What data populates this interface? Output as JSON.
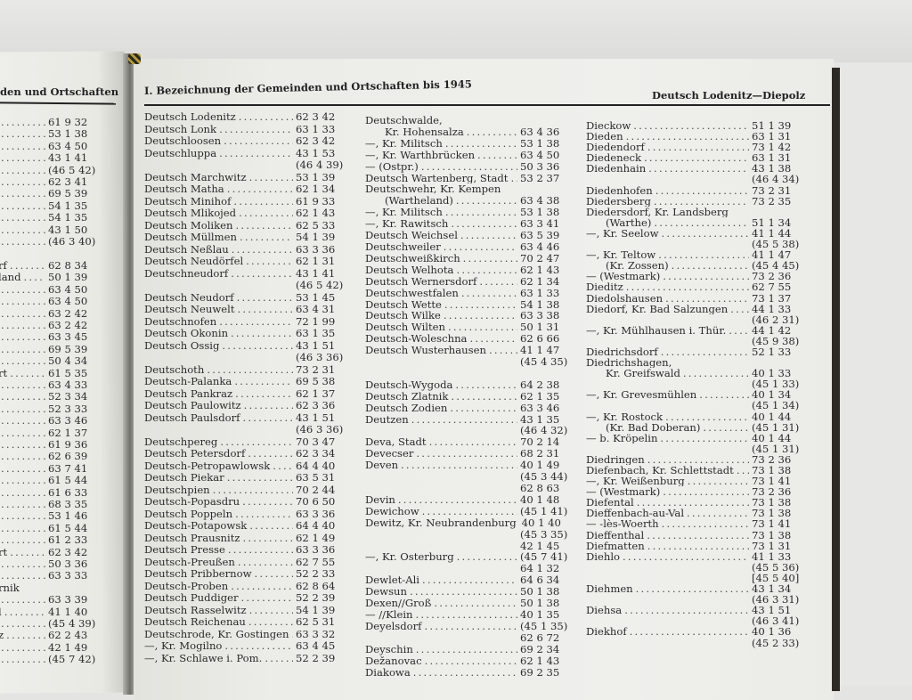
{
  "left_page": {
    "header": "den und Ortschaften",
    "lines": [
      {
        "name": "",
        "ref": "61 9 32"
      },
      {
        "name": "",
        "ref": "53 1 38"
      },
      {
        "name": "",
        "ref": "63 4 50"
      },
      {
        "name": "",
        "ref": "43 1 41"
      },
      {
        "name": "",
        "ref": "(46 5 42)"
      },
      {
        "name": "",
        "ref": "62 3 41"
      },
      {
        "name": "",
        "ref": "69 5 39"
      },
      {
        "name": "",
        "ref": "54 1 35"
      },
      {
        "name": "",
        "ref": "54 1 35"
      },
      {
        "name": "",
        "ref": "43 1 50"
      },
      {
        "name": "",
        "ref": "(46 3 40)"
      },
      {
        "name": "",
        "ref": ""
      },
      {
        "name": "rf",
        "ref": "62 8 34"
      },
      {
        "name": "land",
        "ref": "50 1 39"
      },
      {
        "name": "",
        "ref": "63 4 50"
      },
      {
        "name": "",
        "ref": "63 4 50"
      },
      {
        "name": "",
        "ref": "63 2 42"
      },
      {
        "name": "",
        "ref": "63 2 42"
      },
      {
        "name": "",
        "ref": "63 3 45"
      },
      {
        "name": "",
        "ref": "69 5 39"
      },
      {
        "name": "",
        "ref": "50 4 34"
      },
      {
        "name": "rt",
        "ref": "61 5 35"
      },
      {
        "name": "",
        "ref": "63 4 33"
      },
      {
        "name": "",
        "ref": "52 3 34"
      },
      {
        "name": "",
        "ref": "52 3 33"
      },
      {
        "name": "",
        "ref": "63 3 46"
      },
      {
        "name": "",
        "ref": "62 1 37"
      },
      {
        "name": "",
        "ref": "61 9 36"
      },
      {
        "name": "",
        "ref": "62 6 39"
      },
      {
        "name": "",
        "ref": "63 7 41"
      },
      {
        "name": "",
        "ref": "61 5 44"
      },
      {
        "name": "",
        "ref": "61 6 33"
      },
      {
        "name": "",
        "ref": "68 3 35"
      },
      {
        "name": "",
        "ref": "53 1 46"
      },
      {
        "name": "",
        "ref": "61 5 44"
      },
      {
        "name": "",
        "ref": "61 2 33"
      },
      {
        "name": "rt",
        "ref": "62 3 42"
      },
      {
        "name": "",
        "ref": "50 3 36"
      },
      {
        "name": "",
        "ref": "63 3 33"
      },
      {
        "name": "rnik",
        "ref": ""
      },
      {
        "name": "",
        "ref": "63 3 39"
      },
      {
        "name": "l",
        "ref": "41 1 40"
      },
      {
        "name": "",
        "ref": "(45 4 39)"
      },
      {
        "name": "z",
        "ref": "62 2 43"
      },
      {
        "name": "",
        "ref": "42 1 49"
      },
      {
        "name": "",
        "ref": "(45 7 42)"
      }
    ]
  },
  "right_page": {
    "header_left": "I. Bezeichnung der Gemeinden und Ortschaften bis 1945",
    "header_right": "Deutsch Lodenitz—Diepolz",
    "columns": [
      [
        {
          "name": "Deutsch Lodenitz",
          "ref": "62 3 42"
        },
        {
          "name": "Deutsch Lonk",
          "ref": "63 1 33"
        },
        {
          "name": "Deutschloosen",
          "ref": "62 3 42"
        },
        {
          "name": "Deutschluppa",
          "ref": "43 1 53"
        },
        {
          "name": "",
          "ref": "(46 4 39)"
        },
        {
          "name": "Deutsch Marchwitz",
          "ref": "53 1 39"
        },
        {
          "name": "Deutsch Matha",
          "ref": "62 1 34"
        },
        {
          "name": "Deutsch Minihof",
          "ref": "61 9 33"
        },
        {
          "name": "Deutsch Mlikojed",
          "ref": "62 1 43"
        },
        {
          "name": "Deutsch Moliken",
          "ref": "62 5 33"
        },
        {
          "name": "Deutsch Müllmen",
          "ref": "54 1 39"
        },
        {
          "name": "Deutsch Neßlau",
          "ref": "63 3 36"
        },
        {
          "name": "Deutsch Neudörfel",
          "ref": "62 1 31"
        },
        {
          "name": "Deutschneudorf",
          "ref": "43 1 41"
        },
        {
          "name": "",
          "ref": "(46 5 42)"
        },
        {
          "name": "Deutsch Neudorf",
          "ref": "53 1 45"
        },
        {
          "name": "Deutsch Neuwelt",
          "ref": "63 4 31"
        },
        {
          "name": "Deutschnofen",
          "ref": "72 1 99"
        },
        {
          "name": "Deutsch Okonin",
          "ref": "63 1 35"
        },
        {
          "name": "Deutsch Ossig",
          "ref": "43 1 51"
        },
        {
          "name": "",
          "ref": "(46 3 36)"
        },
        {
          "name": "Deutschoth",
          "ref": "73 2 31"
        },
        {
          "name": "Deutsch-Palanka",
          "ref": "69 5 38"
        },
        {
          "name": "Deutsch Pankraz",
          "ref": "62 1 37"
        },
        {
          "name": "Deutsch Paulowitz",
          "ref": "62 3 36"
        },
        {
          "name": "Deutsch Paulsdorf",
          "ref": "43 1 51"
        },
        {
          "name": "",
          "ref": "(46 3 36)"
        },
        {
          "name": "Deutschpereg",
          "ref": "70 3 47"
        },
        {
          "name": "Deutsch Petersdorf",
          "ref": "62 3 34"
        },
        {
          "name": "Deutsch-Petropawlowsk",
          "ref": "64 4 40"
        },
        {
          "name": "Deutsch Piekar",
          "ref": "63 5 31"
        },
        {
          "name": "Deutschpien",
          "ref": "70 2 44"
        },
        {
          "name": "Deutsch-Popasdru",
          "ref": "70 6 50"
        },
        {
          "name": "Deutsch Poppeln",
          "ref": "63 3 36"
        },
        {
          "name": "Deutsch-Potapowsk",
          "ref": "64 4 40"
        },
        {
          "name": "Deutsch Prausnitz",
          "ref": "62 1 49"
        },
        {
          "name": "Deutsch Presse",
          "ref": "63 3 36"
        },
        {
          "name": "Deutsch-Preußen",
          "ref": "62 7 55"
        },
        {
          "name": "Deutsch Pribbernow",
          "ref": "52 2 33"
        },
        {
          "name": "Deutsch-Proben",
          "ref": "62 8 64"
        },
        {
          "name": "Deutsch Puddiger",
          "ref": "52 2 39"
        },
        {
          "name": "Deutsch Rasselwitz",
          "ref": "54 1 39"
        },
        {
          "name": "Deutsch Reichenau",
          "ref": "62 5 31"
        },
        {
          "name": "Deutschrode, Kr. Gostingen",
          "ref": "63 3 32"
        },
        {
          "name": "—, Kr. Mogilno",
          "ref": "63 4 45"
        },
        {
          "name": "—, Kr. Schlawe i. Pom.",
          "ref": "52 2 39"
        }
      ],
      [
        {
          "name": "Deutschwalde,",
          "ref": ""
        },
        {
          "name": "Kr. Hohensalza",
          "ref": "63 4 36",
          "indent": true
        },
        {
          "name": "—, Kr. Militsch",
          "ref": "53 1 38"
        },
        {
          "name": "—, Kr. Warthbrücken",
          "ref": "63 4 50"
        },
        {
          "name": "— (Ostpr.)",
          "ref": "50 3 36"
        },
        {
          "name": "Deutsch Wartenberg, Stadt",
          "ref": "53 2 37"
        },
        {
          "name": "Deutschwehr, Kr. Kempen",
          "ref": ""
        },
        {
          "name": "(Wartheland)",
          "ref": "63 4 38",
          "indent": true
        },
        {
          "name": "—, Kr. Militsch",
          "ref": "53 1 38"
        },
        {
          "name": "—, Kr. Rawitsch",
          "ref": "63 3 41"
        },
        {
          "name": "Deutsch Weichsel",
          "ref": "63 5 39"
        },
        {
          "name": "Deutschweiler",
          "ref": "63 4 46"
        },
        {
          "name": "Deutschweißkirch",
          "ref": "70 2 47"
        },
        {
          "name": "Deutsch Welhota",
          "ref": "62 1 43"
        },
        {
          "name": "Deutsch Wernersdorf",
          "ref": "62 1 34"
        },
        {
          "name": "Deutschwestfalen",
          "ref": "63 1 33"
        },
        {
          "name": "Deutsch Wette",
          "ref": "54 1 38"
        },
        {
          "name": "Deutsch Wilke",
          "ref": "63 3 38"
        },
        {
          "name": "Deutsch Wilten",
          "ref": "50 1 31"
        },
        {
          "name": "Deutsch-Woleschna",
          "ref": "62 6 66"
        },
        {
          "name": "Deutsch Wusterhausen",
          "ref": "41 1 47"
        },
        {
          "name": "",
          "ref": "(45 4 35)"
        },
        {
          "name": "",
          "ref": ""
        },
        {
          "name": "Deutsch-Wygoda",
          "ref": "64 2 38"
        },
        {
          "name": "Deutsch Zlatnik",
          "ref": "62 1 35"
        },
        {
          "name": "Deutsch Zodien",
          "ref": "63 3 46"
        },
        {
          "name": "Deutzen",
          "ref": "43 1 35"
        },
        {
          "name": "",
          "ref": "(46 4 32)"
        },
        {
          "name": "Deva, Stadt",
          "ref": "70 2 14"
        },
        {
          "name": "Devecser",
          "ref": "68 2 31"
        },
        {
          "name": "Deven",
          "ref": "40 1 49"
        },
        {
          "name": "",
          "ref": "(45 3 44)"
        },
        {
          "name": "",
          "ref": "62 8 63"
        },
        {
          "name": "Devin",
          "ref": "40 1 48"
        },
        {
          "name": "Dewichow",
          "ref": "(45 1 41)"
        },
        {
          "name": "Dewitz, Kr. Neubrandenburg",
          "ref": "40 1 40"
        },
        {
          "name": "",
          "ref": "(45 3 35)"
        },
        {
          "name": "",
          "ref": "42 1 45"
        },
        {
          "name": "—, Kr. Osterburg",
          "ref": "(45 7 41)"
        },
        {
          "name": "",
          "ref": "64 1 32"
        },
        {
          "name": "Dewlet-Ali",
          "ref": "64 6 34"
        },
        {
          "name": "Dewsun",
          "ref": "50 1 38"
        },
        {
          "name": "Dexen//Groß",
          "ref": "50 1 38"
        },
        {
          "name": "— //Klein",
          "ref": "40 1 35"
        },
        {
          "name": "Deyelsdorf",
          "ref": "(45 1 35)"
        },
        {
          "name": "",
          "ref": "62 6 72"
        },
        {
          "name": "Deyschin",
          "ref": "69 2 34"
        },
        {
          "name": "Dežanovac",
          "ref": "62 1 43"
        },
        {
          "name": "Diakowa",
          "ref": "69 2 35"
        }
      ],
      [
        {
          "name": "Dieckow",
          "ref": "51 1 39"
        },
        {
          "name": "Dieden",
          "ref": "63 1 31"
        },
        {
          "name": "Diedendorf",
          "ref": "73 1 42"
        },
        {
          "name": "Diedeneck",
          "ref": "63 1 31"
        },
        {
          "name": "Diedenhain",
          "ref": "43 1 38"
        },
        {
          "name": "",
          "ref": "(46 4 34)"
        },
        {
          "name": "Diedenhofen",
          "ref": "73 2 31"
        },
        {
          "name": "Diedersberg",
          "ref": "73 2 35"
        },
        {
          "name": "Diedersdorf, Kr. Landsberg",
          "ref": ""
        },
        {
          "name": "(Warthe)",
          "ref": "51 1 34",
          "indent": true
        },
        {
          "name": "—, Kr. Seelow",
          "ref": "41 1 44"
        },
        {
          "name": "",
          "ref": "(45 5 38)"
        },
        {
          "name": "—, Kr. Teltow",
          "ref": "41 1 47"
        },
        {
          "name": "(Kr. Zossen)",
          "ref": "(45 4 45)",
          "indent": true
        },
        {
          "name": "— (Westmark)",
          "ref": "73 2 36"
        },
        {
          "name": "Dieditz",
          "ref": "62 7 55"
        },
        {
          "name": "Diedolshausen",
          "ref": "73 1 37"
        },
        {
          "name": "Diedorf, Kr. Bad Salzungen",
          "ref": "44 1 33"
        },
        {
          "name": "",
          "ref": "(46 2 31)"
        },
        {
          "name": "—, Kr. Mühlhausen i. Thür.",
          "ref": "44 1 42"
        },
        {
          "name": "",
          "ref": "(45 9 38)"
        },
        {
          "name": "Diedrichsdorf",
          "ref": "52 1 33"
        },
        {
          "name": "Diedrichshagen,",
          "ref": ""
        },
        {
          "name": "Kr. Greifswald",
          "ref": "40 1 33",
          "indent": true
        },
        {
          "name": "",
          "ref": "(45 1 33)"
        },
        {
          "name": "—, Kr. Grevesmühlen",
          "ref": "40 1 34"
        },
        {
          "name": "",
          "ref": "(45 1 34)"
        },
        {
          "name": "—, Kr. Rostock",
          "ref": "40 1 44"
        },
        {
          "name": "(Kr. Bad Doberan)",
          "ref": "(45 1 31)",
          "indent": true
        },
        {
          "name": "— b. Kröpelin",
          "ref": "40 1 44"
        },
        {
          "name": "",
          "ref": "(45 1 31)"
        },
        {
          "name": "Diedringen",
          "ref": "73 2 36"
        },
        {
          "name": "Diefenbach, Kr. Schlettstadt",
          "ref": "73 1 38"
        },
        {
          "name": "—, Kr. Weißenburg",
          "ref": "73 1 41"
        },
        {
          "name": "— (Westmark)",
          "ref": "73 2 36"
        },
        {
          "name": "Diefental",
          "ref": "73 1 38"
        },
        {
          "name": "Dieffenbach-au-Val",
          "ref": "73 1 38"
        },
        {
          "name": "— -lès-Woerth",
          "ref": "73 1 41"
        },
        {
          "name": "Dieffenthal",
          "ref": "73 1 38"
        },
        {
          "name": "Diefmatten",
          "ref": "73 1 31"
        },
        {
          "name": "Diehlo",
          "ref": "41 1 33"
        },
        {
          "name": "",
          "ref": "(45 5 36)"
        },
        {
          "name": "",
          "ref": "[45 5 40]"
        },
        {
          "name": "Diehmen",
          "ref": "43 1 34"
        },
        {
          "name": "",
          "ref": "(46 3 31)"
        },
        {
          "name": "Diehsa",
          "ref": "43 1 51"
        },
        {
          "name": "",
          "ref": "(46 3 41)"
        },
        {
          "name": "Diekhof",
          "ref": "40 1 36"
        },
        {
          "name": "",
          "ref": "(45 2 33)"
        }
      ]
    ]
  }
}
